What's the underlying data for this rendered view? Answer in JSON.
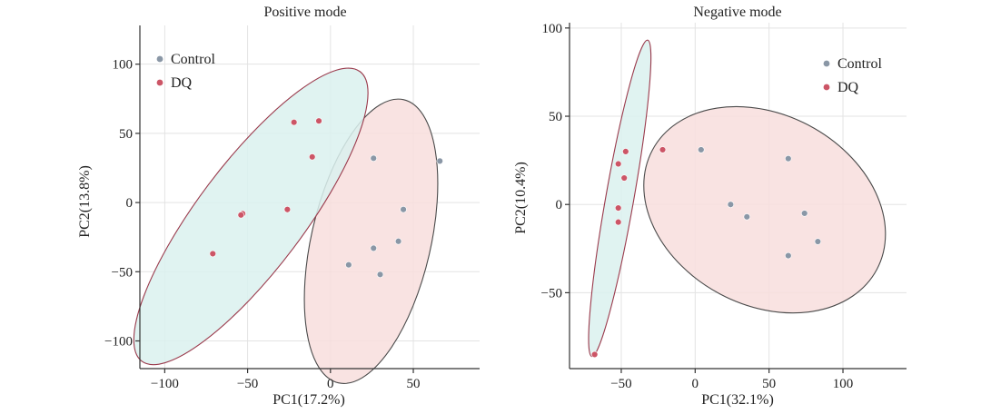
{
  "chart_data": [
    {
      "type": "scatter",
      "title": "Positive mode",
      "xlabel": "PC1(17.2%)",
      "ylabel": "PC2(13.8%)",
      "xlim": [
        -115,
        90
      ],
      "ylim": [
        -120,
        128
      ],
      "xticks": [
        -100,
        -50,
        0,
        50
      ],
      "yticks": [
        -100,
        -50,
        0,
        50,
        100
      ],
      "xtick_labels": [
        "−100",
        "−50",
        "0",
        "50"
      ],
      "ytick_labels": [
        "−100",
        "−50",
        "0",
        "50",
        "100"
      ],
      "grid": true,
      "legend_position": "top-left",
      "series": [
        {
          "name": "Control",
          "color": "#8a97a6",
          "ellipse_fill": "#f8dedd",
          "ellipse_stroke": "#4a4a4a",
          "ellipse": {
            "cx": 24.5,
            "cy": -28,
            "rx": 36,
            "ry": 105,
            "angle": 13
          },
          "points": [
            [
              26,
              32
            ],
            [
              66,
              30
            ],
            [
              44,
              -5
            ],
            [
              41,
              -28
            ],
            [
              26,
              -33
            ],
            [
              11,
              -45
            ],
            [
              30,
              -52
            ]
          ]
        },
        {
          "name": "DQ",
          "color": "#cc5566",
          "ellipse_fill": "#dbf1ee",
          "ellipse_stroke": "#9a3a4c",
          "ellipse": {
            "cx": -48,
            "cy": -10,
            "rx": 32,
            "ry": 131,
            "angle": 37
          },
          "points": [
            [
              -22,
              58
            ],
            [
              -7,
              59
            ],
            [
              -11,
              33
            ],
            [
              -53,
              -8
            ],
            [
              -54,
              -9
            ],
            [
              -26,
              -5
            ],
            [
              -71,
              -37
            ]
          ]
        }
      ]
    },
    {
      "type": "scatter",
      "title": "Negative mode",
      "xlabel": "PC1(32.1%)",
      "ylabel": "PC2(10.4%)",
      "xlim": [
        -85,
        143
      ],
      "ylim": [
        -93,
        103
      ],
      "xticks": [
        -50,
        0,
        50,
        100
      ],
      "yticks": [
        -50,
        0,
        50,
        100
      ],
      "xtick_labels": [
        "−50",
        "0",
        "50",
        "100"
      ],
      "ytick_labels": [
        "−50",
        "0",
        "50",
        "100"
      ],
      "grid": true,
      "legend_position": "top-right",
      "series": [
        {
          "name": "Control",
          "color": "#8a97a6",
          "ellipse_fill": "#f8dedd",
          "ellipse_stroke": "#4a4a4a",
          "ellipse": {
            "cx": 47,
            "cy": -3,
            "rx": 86,
            "ry": 54,
            "angle": 28
          },
          "points": [
            [
              4,
              31
            ],
            [
              63,
              26
            ],
            [
              24,
              0
            ],
            [
              35,
              -7
            ],
            [
              74,
              -5
            ],
            [
              83,
              -21
            ],
            [
              63,
              -29
            ]
          ]
        },
        {
          "name": "DQ",
          "color": "#cc5566",
          "ellipse_fill": "#dbf1ee",
          "ellipse_stroke": "#9a3a4c",
          "ellipse": {
            "cx": -51,
            "cy": 3.5,
            "rx": 9.5,
            "ry": 91,
            "angle": 10
          },
          "points": [
            [
              -22,
              31
            ],
            [
              -47,
              30
            ],
            [
              -52,
              23
            ],
            [
              -48,
              15
            ],
            [
              -52,
              -2
            ],
            [
              -52,
              -10
            ],
            [
              -68,
              -85
            ]
          ]
        }
      ]
    }
  ]
}
